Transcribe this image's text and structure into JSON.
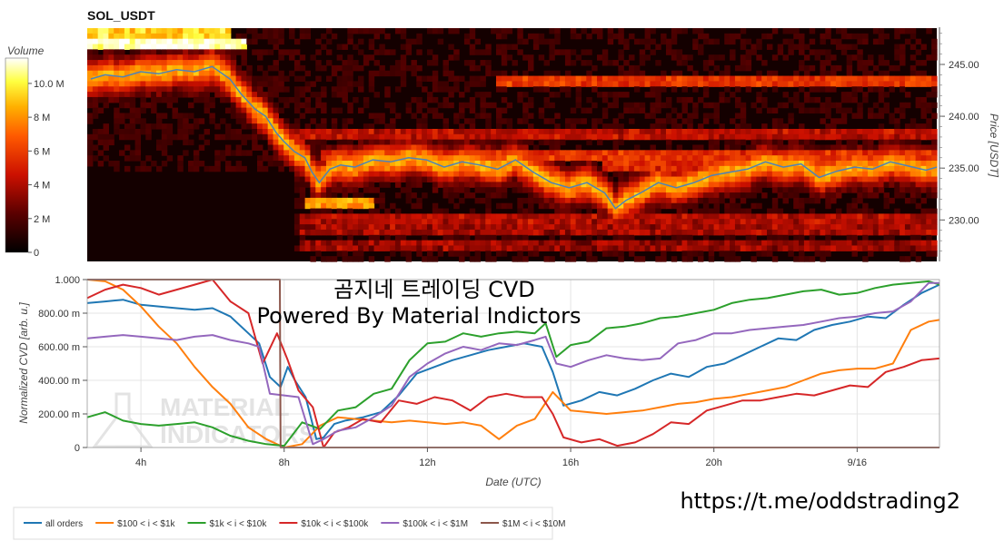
{
  "heatmap": {
    "title": "SOL_USDT",
    "colorbar": {
      "label": "Volume",
      "ticks": [
        "10.0 M",
        "8 M",
        "6 M",
        "4 M",
        "2 M",
        "0"
      ],
      "max": 11.5
    },
    "y_axis": {
      "label": "Price [USDT]",
      "ticks": [
        "245.00",
        "240.00",
        "235.00",
        "230.00"
      ],
      "ylim": [
        226,
        248.5
      ]
    },
    "price_color": "#4f82b8"
  },
  "cvd": {
    "y_axis": {
      "label": "Normalized CVD [arb. u.]",
      "ticks": [
        "1.000",
        "800.00 m",
        "600.00 m",
        "400.00 m",
        "200.00 m",
        "0"
      ]
    },
    "x_axis": {
      "label": "Date (UTC)",
      "ticks": [
        "4h",
        "8h",
        "12h",
        "16h",
        "20h",
        "9/16"
      ]
    }
  },
  "overlay": {
    "line1": "곰지네 트레이딩 CVD",
    "line2": "Powered By Material Indictors",
    "watermark_line1": "MATERIAL",
    "watermark_line2": "INDICATORS",
    "url": "https://t.me/oddstrading2"
  },
  "chart_data": [
    {
      "type": "heatmap",
      "title": "SOL_USDT",
      "xlabel": "",
      "ylabel": "Price [USDT]",
      "xlim_hours": [
        2.5,
        26.3
      ],
      "ylim": [
        226,
        248.5
      ],
      "price_series": {
        "x_hours": [
          2.6,
          3.0,
          3.5,
          4.0,
          4.5,
          5.0,
          5.5,
          6.0,
          6.5,
          6.8,
          7.2,
          7.5,
          7.8,
          8.0,
          8.3,
          8.6,
          8.8,
          9.0,
          9.3,
          9.6,
          10.0,
          10.5,
          11.0,
          11.5,
          12.0,
          12.5,
          13.0,
          13.5,
          14.0,
          14.5,
          15.0,
          15.5,
          16.0,
          16.5,
          17.0,
          17.3,
          17.6,
          18.0,
          18.5,
          19.0,
          19.5,
          20.0,
          20.5,
          21.0,
          21.5,
          22.0,
          22.5,
          23.0,
          23.5,
          24.0,
          24.5,
          25.0,
          25.5,
          26.0,
          26.3
        ],
        "price": [
          243.6,
          244.0,
          243.8,
          244.3,
          244.1,
          244.5,
          244.3,
          244.8,
          243.6,
          242.2,
          240.7,
          240.0,
          238.4,
          237.6,
          236.6,
          236.0,
          234.6,
          233.6,
          234.9,
          235.3,
          235.1,
          235.8,
          235.6,
          236.0,
          235.8,
          235.1,
          235.6,
          235.3,
          234.9,
          235.8,
          234.6,
          233.6,
          233.1,
          233.6,
          232.6,
          231.1,
          231.9,
          232.6,
          233.6,
          233.1,
          233.6,
          234.3,
          234.6,
          234.9,
          235.6,
          235.1,
          235.4,
          234.1,
          234.7,
          235.1,
          234.9,
          235.6,
          235.2,
          234.8,
          235.1
        ]
      },
      "colorbar": {
        "label": "Volume",
        "unit": "M",
        "range": [
          0,
          11.5
        ]
      }
    },
    {
      "type": "line",
      "xlabel": "Date (UTC)",
      "ylabel": "Normalized CVD [arb. u.]",
      "xlim_hours": [
        2.5,
        26.3
      ],
      "ylim": [
        0,
        1
      ],
      "x_tick_labels": [
        "4h",
        "8h",
        "12h",
        "16h",
        "20h",
        "9/16"
      ],
      "x_tick_hours": [
        4,
        8,
        12,
        16,
        20,
        24
      ],
      "legend_placement": "bottom-left",
      "series": [
        {
          "name": "all orders",
          "color": "#1f77b4",
          "x": [
            2.5,
            3.0,
            3.5,
            4.0,
            4.5,
            5.0,
            5.5,
            6.0,
            6.5,
            7.0,
            7.3,
            7.6,
            7.9,
            8.1,
            8.3,
            8.6,
            8.9,
            9.1,
            9.4,
            9.7,
            10.2,
            10.7,
            11.2,
            11.7,
            12.2,
            12.7,
            13.2,
            13.7,
            14.2,
            14.7,
            15.2,
            15.5,
            15.8,
            16.3,
            16.8,
            17.3,
            17.8,
            18.3,
            18.8,
            19.3,
            19.8,
            20.3,
            20.8,
            21.3,
            21.8,
            22.3,
            22.8,
            23.3,
            23.8,
            24.3,
            24.8,
            25.3,
            25.8,
            26.3
          ],
          "y": [
            0.86,
            0.87,
            0.88,
            0.85,
            0.84,
            0.83,
            0.82,
            0.83,
            0.78,
            0.68,
            0.62,
            0.42,
            0.36,
            0.48,
            0.4,
            0.3,
            0.05,
            0.06,
            0.14,
            0.16,
            0.18,
            0.21,
            0.31,
            0.44,
            0.48,
            0.52,
            0.55,
            0.58,
            0.6,
            0.62,
            0.6,
            0.45,
            0.25,
            0.28,
            0.33,
            0.31,
            0.35,
            0.4,
            0.44,
            0.42,
            0.48,
            0.5,
            0.55,
            0.6,
            0.65,
            0.64,
            0.7,
            0.73,
            0.75,
            0.78,
            0.77,
            0.85,
            0.92,
            0.97
          ]
        },
        {
          "name": "$100 < i < $1k",
          "color": "#ff7f0e",
          "x": [
            2.5,
            3.0,
            3.5,
            4.0,
            4.5,
            5.0,
            5.5,
            6.0,
            6.5,
            7.0,
            7.5,
            8.0,
            8.5,
            9.0,
            9.5,
            10.0,
            10.5,
            11.0,
            11.5,
            12.0,
            12.5,
            13.0,
            13.5,
            14.0,
            14.5,
            15.0,
            15.5,
            16.0,
            16.5,
            17.0,
            17.5,
            18.0,
            18.5,
            19.0,
            19.5,
            20.0,
            20.5,
            21.0,
            21.5,
            22.0,
            22.5,
            23.0,
            23.5,
            24.0,
            24.5,
            25.0,
            25.5,
            26.0,
            26.3
          ],
          "y": [
            1.0,
            0.99,
            0.94,
            0.84,
            0.72,
            0.62,
            0.48,
            0.36,
            0.26,
            0.12,
            0.05,
            0.0,
            0.02,
            0.13,
            0.18,
            0.17,
            0.16,
            0.15,
            0.16,
            0.15,
            0.14,
            0.15,
            0.13,
            0.05,
            0.13,
            0.17,
            0.33,
            0.22,
            0.21,
            0.2,
            0.21,
            0.22,
            0.24,
            0.26,
            0.27,
            0.29,
            0.3,
            0.32,
            0.34,
            0.36,
            0.4,
            0.44,
            0.46,
            0.47,
            0.47,
            0.5,
            0.7,
            0.75,
            0.76
          ]
        },
        {
          "name": "$1k < i < $10k",
          "color": "#2ca02c",
          "x": [
            2.5,
            3.0,
            3.5,
            4.0,
            4.5,
            5.0,
            5.5,
            6.0,
            6.5,
            7.0,
            7.5,
            8.0,
            8.5,
            9.0,
            9.5,
            10.0,
            10.5,
            11.0,
            11.5,
            12.0,
            12.5,
            13.0,
            13.5,
            14.0,
            14.5,
            15.0,
            15.3,
            15.6,
            16.0,
            16.5,
            17.0,
            17.5,
            18.0,
            18.5,
            19.0,
            19.5,
            20.0,
            20.5,
            21.0,
            21.5,
            22.0,
            22.5,
            23.0,
            23.5,
            24.0,
            24.5,
            25.0,
            25.5,
            26.0,
            26.3
          ],
          "y": [
            0.18,
            0.21,
            0.16,
            0.14,
            0.13,
            0.14,
            0.15,
            0.12,
            0.07,
            0.04,
            0.02,
            0.01,
            0.15,
            0.11,
            0.22,
            0.24,
            0.32,
            0.35,
            0.52,
            0.62,
            0.63,
            0.68,
            0.66,
            0.68,
            0.69,
            0.68,
            0.74,
            0.54,
            0.61,
            0.63,
            0.71,
            0.72,
            0.74,
            0.77,
            0.78,
            0.8,
            0.82,
            0.86,
            0.88,
            0.89,
            0.91,
            0.93,
            0.94,
            0.91,
            0.92,
            0.95,
            0.97,
            0.98,
            0.99,
            0.97
          ]
        },
        {
          "name": "$10k < i < $100k",
          "color": "#d62728",
          "x": [
            2.5,
            3.0,
            3.5,
            4.0,
            4.5,
            5.0,
            5.5,
            6.0,
            6.5,
            7.0,
            7.4,
            7.8,
            8.1,
            8.4,
            8.8,
            9.1,
            9.4,
            9.8,
            10.2,
            10.7,
            11.2,
            11.7,
            12.2,
            12.7,
            13.2,
            13.7,
            14.2,
            14.7,
            15.2,
            15.5,
            15.8,
            16.3,
            16.8,
            17.3,
            17.8,
            18.3,
            18.8,
            19.3,
            19.8,
            20.3,
            20.8,
            21.3,
            21.8,
            22.3,
            22.8,
            23.3,
            23.8,
            24.3,
            24.8,
            25.3,
            25.8,
            26.3
          ],
          "y": [
            0.89,
            0.94,
            0.97,
            0.95,
            0.91,
            0.94,
            0.97,
            1.0,
            0.87,
            0.8,
            0.5,
            0.68,
            0.52,
            0.34,
            0.24,
            0.0,
            0.09,
            0.12,
            0.17,
            0.15,
            0.28,
            0.26,
            0.3,
            0.28,
            0.22,
            0.3,
            0.32,
            0.3,
            0.3,
            0.2,
            0.06,
            0.03,
            0.05,
            0.01,
            0.03,
            0.08,
            0.15,
            0.14,
            0.22,
            0.25,
            0.28,
            0.28,
            0.3,
            0.32,
            0.31,
            0.34,
            0.37,
            0.36,
            0.45,
            0.48,
            0.52,
            0.53
          ]
        },
        {
          "name": "$100k < i < $1M",
          "color": "#9467bd",
          "x": [
            2.5,
            3.0,
            3.5,
            4.0,
            4.5,
            5.0,
            5.5,
            6.0,
            6.5,
            7.0,
            7.3,
            7.6,
            8.0,
            8.4,
            8.8,
            9.1,
            9.5,
            10.0,
            10.5,
            11.0,
            11.5,
            12.0,
            12.5,
            13.0,
            13.5,
            14.0,
            14.5,
            15.0,
            15.3,
            15.6,
            16.0,
            16.5,
            17.0,
            17.5,
            18.0,
            18.5,
            19.0,
            19.5,
            20.0,
            20.5,
            21.0,
            21.5,
            22.0,
            22.5,
            23.0,
            23.5,
            24.0,
            24.5,
            25.0,
            25.5,
            26.0,
            26.3
          ],
          "y": [
            0.65,
            0.66,
            0.67,
            0.66,
            0.65,
            0.64,
            0.66,
            0.67,
            0.64,
            0.62,
            0.6,
            0.32,
            0.31,
            0.3,
            0.02,
            0.05,
            0.1,
            0.12,
            0.18,
            0.25,
            0.42,
            0.5,
            0.56,
            0.6,
            0.58,
            0.62,
            0.61,
            0.64,
            0.66,
            0.5,
            0.48,
            0.52,
            0.55,
            0.53,
            0.52,
            0.53,
            0.62,
            0.64,
            0.68,
            0.68,
            0.7,
            0.71,
            0.72,
            0.73,
            0.75,
            0.77,
            0.78,
            0.8,
            0.81,
            0.87,
            0.98,
            0.98
          ]
        },
        {
          "name": "$1M < i < $10M",
          "color": "#8c564b",
          "x": [
            2.5,
            3.0,
            4.0,
            5.0,
            6.0,
            7.0,
            7.88,
            7.9,
            8.0,
            9.0,
            10.0,
            12.0,
            14.0,
            16.0,
            18.0,
            20.0,
            22.0,
            24.0,
            26.3
          ],
          "y": [
            1.0,
            1.0,
            1.0,
            1.0,
            1.0,
            1.0,
            1.0,
            0.0,
            0.0,
            0.0,
            0.0,
            0.0,
            0.0,
            0.0,
            0.0,
            0.0,
            0.0,
            0.0,
            0.0
          ]
        }
      ]
    }
  ]
}
